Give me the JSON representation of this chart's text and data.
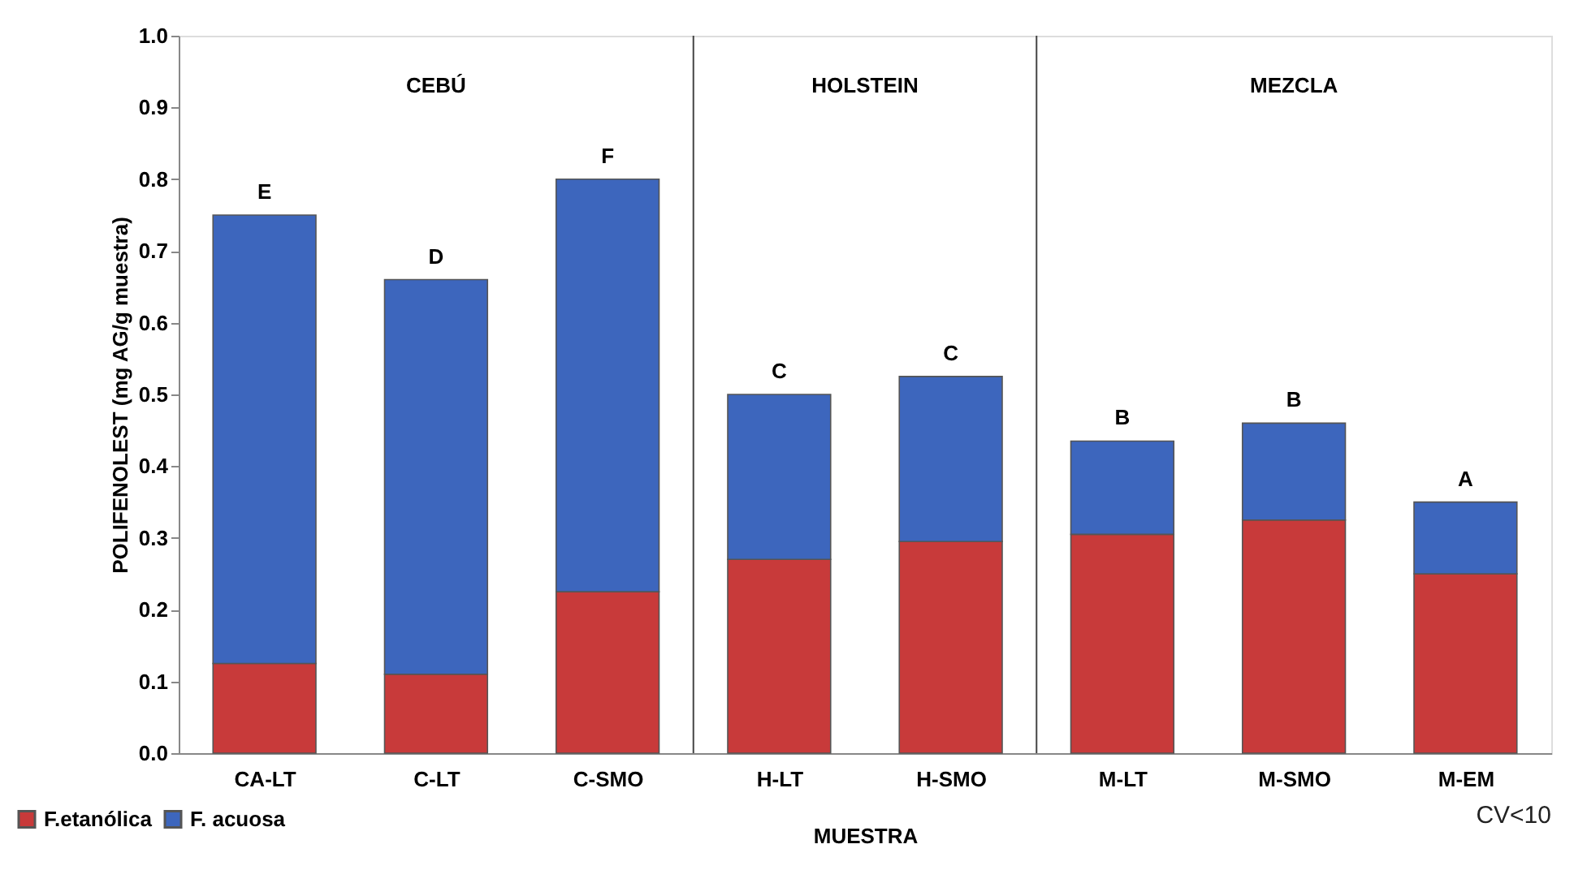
{
  "chart_data": {
    "type": "bar",
    "stacked": true,
    "xlabel": "MUESTRA",
    "ylabel": "POLIFENOLEST (mg AG/g muestra)",
    "categories": [
      "CA-LT",
      "C-LT",
      "C-SMO",
      "H-LT",
      "H-SMO",
      "M-LT",
      "M-SMO",
      "M-EM"
    ],
    "series": [
      {
        "name": "F.etanólica",
        "color": "#c83a3a",
        "values": [
          0.125,
          0.11,
          0.225,
          0.27,
          0.295,
          0.305,
          0.325,
          0.25
        ]
      },
      {
        "name": "F. acuosa",
        "color": "#3d66bd",
        "values": [
          0.625,
          0.55,
          0.575,
          0.23,
          0.23,
          0.13,
          0.135,
          0.1
        ]
      }
    ],
    "ylim": [
      0,
      1
    ],
    "yticks": [
      {
        "value": 0,
        "label": "0.0"
      },
      0.1,
      0.2,
      0.3,
      0.4,
      0.5,
      0.6,
      0.7,
      0.8,
      0.9,
      {
        "value": 1,
        "label": "1.0"
      }
    ],
    "grid": false,
    "legend": "bottom left",
    "annotations": [
      "E",
      "D",
      "F",
      "C",
      "C",
      "B",
      "B",
      "A",
      "CEBÚ",
      "HOLSTEIN",
      "MEZCLA",
      "CV<10"
    ]
  }
}
